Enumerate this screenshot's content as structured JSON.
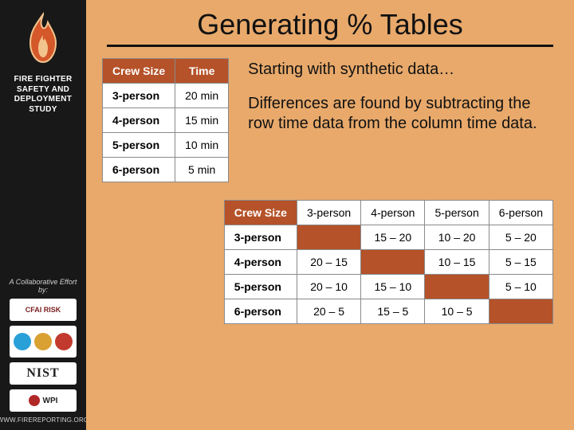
{
  "colors": {
    "slide_bg": "#e8a96b",
    "sidebar_bg": "#181818",
    "table_header_bg": "#b55229",
    "table_header_fg": "#ffffff",
    "table_border": "#8a8a8a",
    "table_bg": "#ffffff",
    "rule": "#111111",
    "title_fg": "#111111"
  },
  "typography": {
    "title_size_pt": 27,
    "body_size_pt": 15,
    "table_size_pt": 11
  },
  "sidebar": {
    "study_title_l1": "FIRE FIGHTER",
    "study_title_l2": "SAFETY AND",
    "study_title_l3": "DEPLOYMENT",
    "study_title_l4": "STUDY",
    "collab_label": "A Collaborative Effort by:",
    "logos": {
      "cfai": "CFAI RISK",
      "nist": "NIST",
      "wpi": "WPI"
    },
    "footer_url": "WWW.FIREREPORTING.ORG"
  },
  "title": "Generating % Tables",
  "copy": {
    "p1": "Starting with synthetic data…",
    "p2": "Differences are found by subtracting the row time data from the column time data."
  },
  "table1": {
    "type": "table",
    "columns": [
      "Crew Size",
      "Time"
    ],
    "rows": [
      [
        "3-person",
        "20 min"
      ],
      [
        "4-person",
        "15 min"
      ],
      [
        "5-person",
        "10 min"
      ],
      [
        "6-person",
        "5 min"
      ]
    ]
  },
  "matrix": {
    "type": "table",
    "corner": "Crew Size",
    "col_headers": [
      "3-person",
      "4-person",
      "5-person",
      "6-person"
    ],
    "row_headers": [
      "3-person",
      "4-person",
      "5-person",
      "6-person"
    ],
    "cells": [
      [
        "",
        "15 – 20",
        "10 – 20",
        "5 – 20"
      ],
      [
        "20 – 15",
        "",
        "10 – 15",
        "5 – 15"
      ],
      [
        "20 – 10",
        "15 – 10",
        "",
        "5 – 10"
      ],
      [
        "20 – 5",
        "15 – 5",
        "10 – 5",
        ""
      ]
    ]
  }
}
